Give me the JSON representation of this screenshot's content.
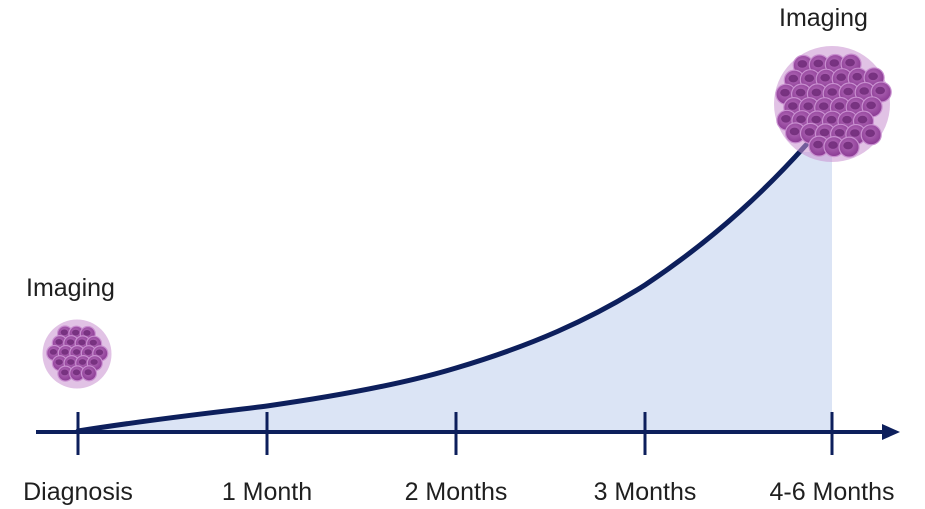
{
  "labels": {
    "imaging_start": "Imaging",
    "imaging_end": "Imaging"
  },
  "timeline": {
    "ticks": [
      "Diagnosis",
      "1 Month",
      "2 Months",
      "3 Months",
      "4-6 Months"
    ]
  },
  "colors": {
    "axis": "#0d1f5c",
    "curve": "#0d1f5c",
    "area_fill": "#dbe4f5",
    "cell_fill": "#9b4aa0",
    "cell_nucleus": "#6e2a78",
    "cell_outline": "#c98fd0"
  }
}
